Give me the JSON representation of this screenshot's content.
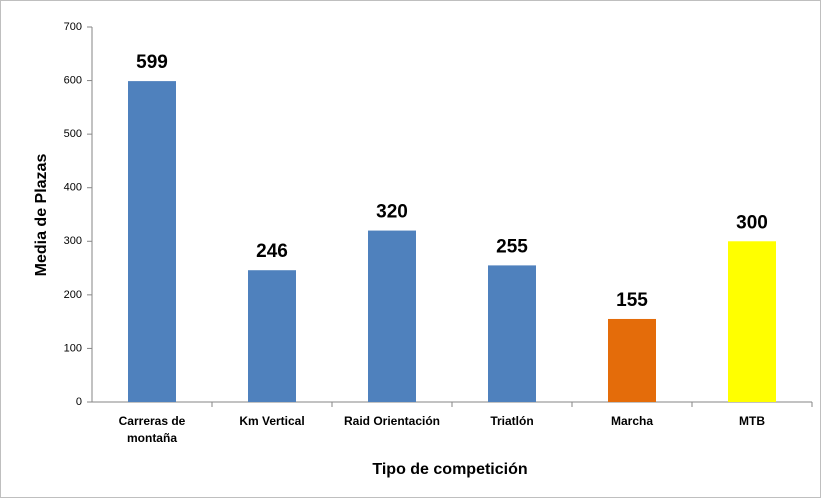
{
  "chart_data": {
    "type": "bar",
    "categories": [
      "Carreras de montaña",
      "Km Vertical",
      "Raid Orientación",
      "Triatlón",
      "Marcha",
      "MTB"
    ],
    "values": [
      599,
      246,
      320,
      255,
      155,
      300
    ],
    "colors": [
      "#4f81bd",
      "#4f81bd",
      "#4f81bd",
      "#4f81bd",
      "#e46c0a",
      "#ffff00"
    ],
    "xlabel": "Tipo de competición",
    "ylabel": "Media de Plazas",
    "ylim": [
      0,
      700
    ],
    "yticks": [
      0,
      100,
      200,
      300,
      400,
      500,
      600,
      700
    ],
    "grid": false
  }
}
